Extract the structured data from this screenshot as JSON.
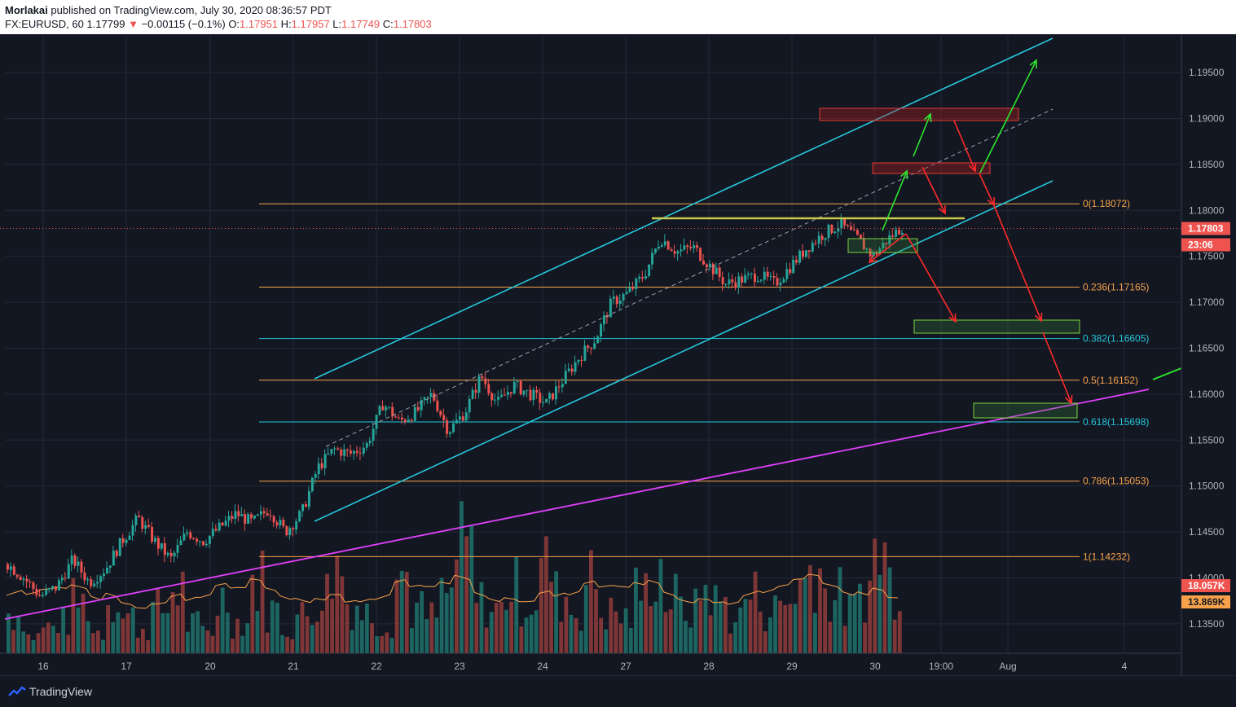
{
  "header": {
    "author": "Morlakai",
    "published": "published on TradingView.com, July 30, 2020 08:36:57 PDT",
    "symbol": "FX:EURUSD, 60",
    "last": "1.17799",
    "arrow": "▼",
    "change": "−0.00115 (−0.1%)",
    "o_label": "O:",
    "o_value": "1.17951",
    "h_label": "H:",
    "h_value": "1.17957",
    "l_label": "L:",
    "l_value": "1.17749",
    "c_label": "C:",
    "c_value": "1.17803"
  },
  "footer": {
    "brand": "TradingView"
  },
  "colors": {
    "bg": "#131722",
    "grid": "#242936",
    "up": "#26a69a",
    "down": "#ef5350",
    "channel": "#26c6da",
    "trend": "#e040fb",
    "fib_orange": "#f7a24a",
    "fib_cyan": "#26c6da",
    "resistance": "#c9c94a",
    "green_arrow": "#2ee62e",
    "red_arrow": "#ff2a2a"
  },
  "chart_data": {
    "type": "candlestick",
    "y_ticks": [
      "1.19500",
      "1.19000",
      "1.18500",
      "1.18000",
      "1.17500",
      "1.17000",
      "1.16500",
      "1.16000",
      "1.15500",
      "1.15000",
      "1.14500",
      "1.14000",
      "1.13500"
    ],
    "x_ticks": [
      "16",
      "17",
      "20",
      "21",
      "22",
      "23",
      "24",
      "27",
      "28",
      "29",
      "30",
      "19:00",
      "Aug",
      "4"
    ],
    "ylim": [
      1.1318,
      1.199
    ],
    "price_label": "1.17803",
    "countdown": "23:06",
    "volume_label": "18.057K",
    "volume_ma_label": "13.869K",
    "fib_levels": [
      {
        "label": "0(1.18072)",
        "value": 1.18072,
        "color": "orange"
      },
      {
        "label": "0.236(1.17165)",
        "value": 1.17165,
        "color": "orange"
      },
      {
        "label": "0.382(1.16605)",
        "value": 1.16605,
        "color": "cyan"
      },
      {
        "label": "0.5(1.16152)",
        "value": 1.16152,
        "color": "orange"
      },
      {
        "label": "0.618(1.15698)",
        "value": 1.15698,
        "color": "cyan"
      },
      {
        "label": "0.786(1.15053)",
        "value": 1.15053,
        "color": "orange"
      },
      {
        "label": "1(1.14232)",
        "value": 1.14232,
        "color": "orange"
      }
    ],
    "price_path": [
      [
        0,
        1.1415
      ],
      [
        1,
        1.14
      ],
      [
        2,
        1.138
      ],
      [
        3,
        1.139
      ],
      [
        4,
        1.142
      ],
      [
        5,
        1.1395
      ],
      [
        6,
        1.141
      ],
      [
        7,
        1.144
      ],
      [
        8,
        1.1465
      ],
      [
        9,
        1.144
      ],
      [
        10,
        1.142
      ],
      [
        11,
        1.145
      ],
      [
        12,
        1.144
      ],
      [
        13,
        1.1455
      ],
      [
        14,
        1.147
      ],
      [
        15,
        1.146
      ],
      [
        16,
        1.1475
      ],
      [
        17,
        1.145
      ],
      [
        18,
        1.147
      ],
      [
        19,
        1.152
      ],
      [
        20,
        1.154
      ],
      [
        21,
        1.1535
      ],
      [
        22,
        1.1545
      ],
      [
        23,
        1.159
      ],
      [
        24,
        1.157
      ],
      [
        25,
        1.158
      ],
      [
        26,
        1.16
      ],
      [
        27,
        1.156
      ],
      [
        28,
        1.158
      ],
      [
        29,
        1.162
      ],
      [
        30,
        1.159
      ],
      [
        31,
        1.161
      ],
      [
        32,
        1.16
      ],
      [
        33,
        1.159
      ],
      [
        34,
        1.1615
      ],
      [
        35,
        1.164
      ],
      [
        36,
        1.166
      ],
      [
        37,
        1.17
      ],
      [
        38,
        1.171
      ],
      [
        39,
        1.173
      ],
      [
        40,
        1.177
      ],
      [
        41,
        1.1755
      ],
      [
        42,
        1.176
      ],
      [
        43,
        1.174
      ],
      [
        44,
        1.172
      ],
      [
        45,
        1.1725
      ],
      [
        46,
        1.173
      ],
      [
        47,
        1.172
      ],
      [
        48,
        1.174
      ],
      [
        49,
        1.176
      ],
      [
        50,
        1.1775
      ],
      [
        51,
        1.1785
      ],
      [
        52,
        1.177
      ],
      [
        53,
        1.175
      ],
      [
        54,
        1.177
      ],
      [
        55,
        1.1785
      ]
    ],
    "volume": [
      28,
      12,
      18,
      22,
      35,
      15,
      40,
      25,
      18,
      30,
      45,
      20,
      15,
      38,
      22,
      50,
      30,
      18,
      26,
      42,
      60,
      35,
      28,
      22,
      55,
      30,
      25,
      40,
      70,
      35,
      30,
      45,
      38,
      60,
      40,
      30,
      50,
      28,
      25,
      42,
      60,
      38,
      30,
      45,
      35,
      25,
      40,
      30,
      35,
      48,
      62,
      40,
      30,
      45,
      70,
      50
    ]
  }
}
